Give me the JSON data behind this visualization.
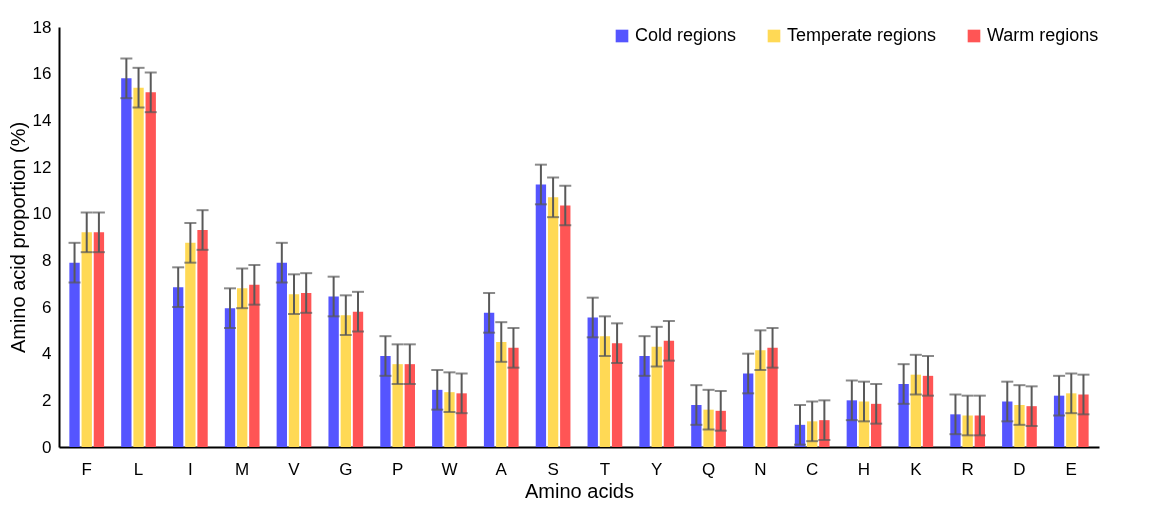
{
  "chart_data": {
    "type": "bar",
    "xlabel": "Amino acids",
    "ylabel": "Amino acid proportion (%)",
    "categories": [
      "F",
      "L",
      "I",
      "M",
      "V",
      "G",
      "P",
      "W",
      "A",
      "S",
      "T",
      "Y",
      "Q",
      "N",
      "C",
      "H",
      "K",
      "R",
      "D",
      "E"
    ],
    "series": [
      {
        "name": "Cold regions",
        "color": "#5555ff",
        "values": [
          7.9,
          15.8,
          6.85,
          5.95,
          7.9,
          6.45,
          3.9,
          2.45,
          5.75,
          11.25,
          5.55,
          3.9,
          1.8,
          3.15,
          0.95,
          2.0,
          2.7,
          1.4,
          1.95,
          2.2
        ],
        "errors": [
          0.85,
          0.85,
          0.85,
          0.85,
          0.85,
          0.85,
          0.85,
          0.85,
          0.85,
          0.85,
          0.85,
          0.85,
          0.85,
          0.85,
          0.85,
          0.85,
          0.85,
          0.85,
          0.85,
          0.85
        ]
      },
      {
        "name": "Temperate regions",
        "color": "#ffd955",
        "values": [
          9.2,
          15.4,
          8.75,
          6.8,
          6.55,
          5.65,
          3.55,
          2.35,
          4.5,
          10.7,
          4.75,
          4.3,
          1.6,
          4.15,
          1.1,
          1.95,
          3.1,
          1.35,
          1.8,
          2.3
        ],
        "errors": [
          0.85,
          0.85,
          0.85,
          0.85,
          0.85,
          0.85,
          0.85,
          0.85,
          0.85,
          0.85,
          0.85,
          0.85,
          0.85,
          0.85,
          0.85,
          0.85,
          0.85,
          0.85,
          0.85,
          0.85
        ]
      },
      {
        "name": "Warm regions",
        "color": "#ff5555",
        "values": [
          9.2,
          15.2,
          9.3,
          6.95,
          6.6,
          5.8,
          3.55,
          2.3,
          4.25,
          10.35,
          4.45,
          4.55,
          1.55,
          4.25,
          1.15,
          1.85,
          3.05,
          1.35,
          1.75,
          2.25
        ],
        "errors": [
          0.85,
          0.85,
          0.85,
          0.85,
          0.85,
          0.85,
          0.85,
          0.85,
          0.85,
          0.85,
          0.85,
          0.85,
          0.85,
          0.85,
          0.85,
          0.85,
          0.85,
          0.85,
          0.85,
          0.85
        ]
      }
    ],
    "ylim": [
      0,
      18
    ],
    "yticks": [
      0,
      2,
      4,
      6,
      8,
      10,
      12,
      14,
      16,
      18
    ],
    "grid": false,
    "legend": "top right"
  }
}
